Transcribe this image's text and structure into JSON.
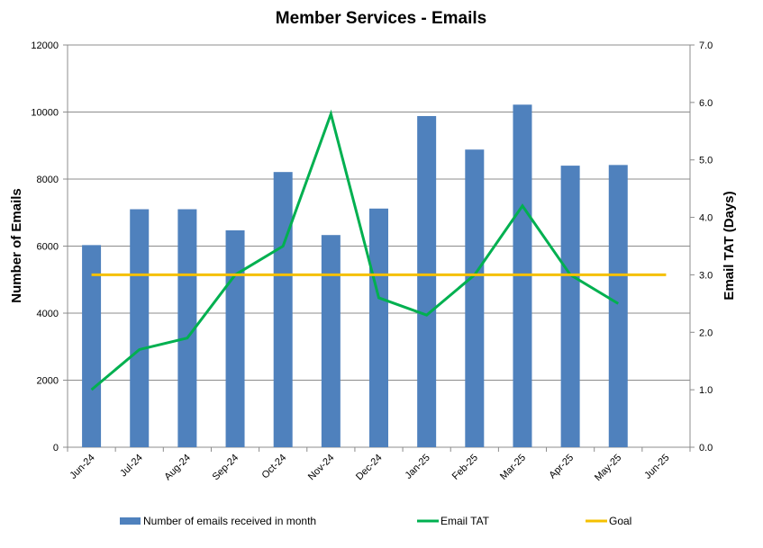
{
  "chart_data": {
    "type": "bar",
    "title": "Member Services - Emails",
    "categories": [
      "Jun-24",
      "Jul-24",
      "Aug-24",
      "Sep-24",
      "Oct-24",
      "Nov-24",
      "Dec-24",
      "Jan-25",
      "Feb-25",
      "Mar-25",
      "Apr-25",
      "May-25",
      "Jun-25"
    ],
    "ylabel": "Number of Emails",
    "y2label": "Email TAT (Days)",
    "ylim": [
      0,
      12000
    ],
    "y2lim": [
      0,
      7
    ],
    "yticks": [
      "0",
      "2000",
      "4000",
      "6000",
      "8000",
      "10000",
      "12000"
    ],
    "y2ticks": [
      "0.0",
      "1.0",
      "2.0",
      "3.0",
      "4.0",
      "5.0",
      "6.0",
      "7.0"
    ],
    "grid": true,
    "legend_position": "bottom",
    "series": [
      {
        "name": "Number of emails received in month",
        "kind": "bar",
        "axis": "left",
        "color": "#4f81bd",
        "values": [
          6030,
          7100,
          7100,
          6470,
          8210,
          6330,
          7120,
          9880,
          8880,
          10220,
          8400,
          8420,
          null
        ]
      },
      {
        "name": "Email TAT",
        "kind": "line",
        "axis": "right",
        "color": "#00b050",
        "values": [
          1.0,
          1.7,
          1.9,
          3.0,
          3.5,
          5.8,
          2.6,
          2.3,
          3.0,
          4.2,
          3.0,
          2.5,
          null
        ]
      },
      {
        "name": "Goal",
        "kind": "line",
        "axis": "right",
        "color": "#f5c000",
        "values": [
          3.0,
          3.0,
          3.0,
          3.0,
          3.0,
          3.0,
          3.0,
          3.0,
          3.0,
          3.0,
          3.0,
          3.0,
          3.0
        ]
      }
    ]
  }
}
